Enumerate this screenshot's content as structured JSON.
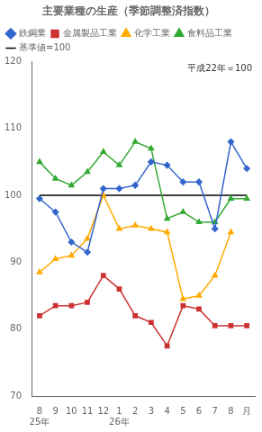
{
  "chart_data": {
    "type": "line",
    "title": "主要業種の生産（季節調整済指数）",
    "annotation": "平成22年＝100",
    "categories": [
      "8",
      "9",
      "10",
      "11",
      "12",
      "1",
      "2",
      "3",
      "4",
      "5",
      "6",
      "7",
      "8",
      "月"
    ],
    "year_labels": [
      "25年",
      null,
      null,
      null,
      null,
      "26年",
      null,
      null,
      null,
      null,
      null,
      null,
      null,
      null
    ],
    "series": [
      {
        "name": "鉄鋼業",
        "color": "#3366cc",
        "marker": "diamond",
        "line_style": "solid",
        "values": [
          99.5,
          97.5,
          93.0,
          91.5,
          101.0,
          101.0,
          101.5,
          105.0,
          104.5,
          102.0,
          102.0,
          95.0,
          108.0,
          104.0
        ]
      },
      {
        "name": "金属製品工業",
        "color": "#cc3333",
        "marker": "square",
        "line_style": "solid",
        "values": [
          82.0,
          83.5,
          83.5,
          84.0,
          88.0,
          86.0,
          82.0,
          81.0,
          77.5,
          83.5,
          83.0,
          80.5,
          80.5,
          80.5
        ]
      },
      {
        "name": "化学工業",
        "color": "#ffaa00",
        "marker": "triangle",
        "line_style": "solid",
        "values": [
          88.5,
          90.5,
          91.0,
          93.5,
          100.0,
          95.0,
          95.5,
          95.0,
          94.5,
          84.5,
          85.0,
          88.0,
          94.5,
          null
        ]
      },
      {
        "name": "食料品工業",
        "color": "#33aa33",
        "marker": "triangle",
        "line_style": "solid",
        "values": [
          105.0,
          102.5,
          101.5,
          103.5,
          106.5,
          104.5,
          108.0,
          107.0,
          96.5,
          97.5,
          96.0,
          96.0,
          99.5,
          99.5
        ]
      },
      {
        "name": "基準値=100",
        "color": "#000000",
        "marker": "none",
        "line_style": "solid",
        "values": [
          100,
          100,
          100,
          100,
          100,
          100,
          100,
          100,
          100,
          100,
          100,
          100,
          100,
          100
        ]
      }
    ],
    "ylim": [
      70,
      120
    ],
    "yticks": [
      70,
      80,
      90,
      100,
      110,
      120
    ],
    "grid": false,
    "legend": "upper left"
  }
}
